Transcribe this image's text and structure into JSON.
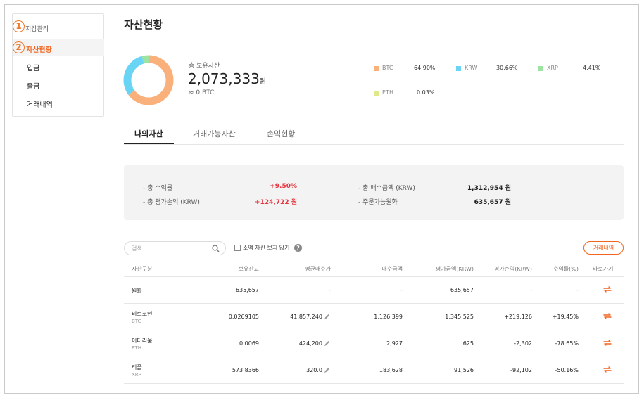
{
  "sidebar": {
    "items": [
      {
        "label": "지갑관리",
        "marker": "1"
      },
      {
        "label": "자산현황",
        "marker": "2"
      },
      {
        "label": "입금"
      },
      {
        "label": "출금"
      },
      {
        "label": "거래내역"
      }
    ]
  },
  "page": {
    "title": "자산현황"
  },
  "overview": {
    "total_label": "총 보유자산",
    "total_value": "2,073,333",
    "total_unit": "원",
    "total_btc": "≈ 0 BTC"
  },
  "allocation": [
    {
      "name": "BTC",
      "percent": "64.90%",
      "value": 64.9,
      "color": "#f9b07a"
    },
    {
      "name": "KRW",
      "percent": "30.66%",
      "value": 30.66,
      "color": "#6ad4f5"
    },
    {
      "name": "XRP",
      "percent": "4.41%",
      "value": 4.41,
      "color": "#9de3a2"
    },
    {
      "name": "ETH",
      "percent": "0.03%",
      "value": 0.03,
      "color": "#dfe98a"
    }
  ],
  "tabs": [
    {
      "label": "나의자산",
      "active": true
    },
    {
      "label": "거래가능자산",
      "active": false
    },
    {
      "label": "손익현황",
      "active": false
    }
  ],
  "summary": {
    "rows": [
      {
        "label": "- 총 수익률",
        "value": "+9.50%"
      },
      {
        "label": "- 총 평가손익 (KRW)",
        "value": "+124,722 원"
      },
      {
        "label": "- 총 매수금액 (KRW)",
        "value": "1,312,954 원"
      },
      {
        "label": "- 주문가능원화",
        "value": "635,657 원"
      }
    ]
  },
  "controls": {
    "search_placeholder": "검색",
    "hide_small_label": "소액 자산 보지 않기",
    "history_button": "거래내역"
  },
  "table": {
    "headers": [
      "자산구분",
      "보유잔고",
      "평균매수가",
      "매수금액",
      "평가금액(KRW)",
      "평가손익(KRW)",
      "수익률(%)",
      "바로가기"
    ],
    "rows": [
      {
        "name": "원화",
        "code": "",
        "balance": "635,657",
        "avg_price": "-",
        "buy_amount": "-",
        "eval_amount": "635,657",
        "pnl": "-",
        "rate": "-"
      },
      {
        "name": "비트코인",
        "code": "BTC",
        "balance": "0.0269105",
        "avg_price": "41,857,240",
        "buy_amount": "1,126,399",
        "eval_amount": "1,345,525",
        "pnl": "+219,126",
        "rate": "+19.45%"
      },
      {
        "name": "이더리움",
        "code": "ETH",
        "balance": "0.0069",
        "avg_price": "424,200",
        "buy_amount": "2,927",
        "eval_amount": "625",
        "pnl": "-2,302",
        "rate": "-78.65%"
      },
      {
        "name": "리플",
        "code": "XRP",
        "balance": "573.8366",
        "avg_price": "320.0",
        "buy_amount": "183,628",
        "eval_amount": "91,526",
        "pnl": "-92,102",
        "rate": "-50.16%"
      }
    ]
  },
  "colors": {
    "accent": "#f2641f",
    "positive": "#e6353f",
    "negative": "#3b6fd9"
  }
}
